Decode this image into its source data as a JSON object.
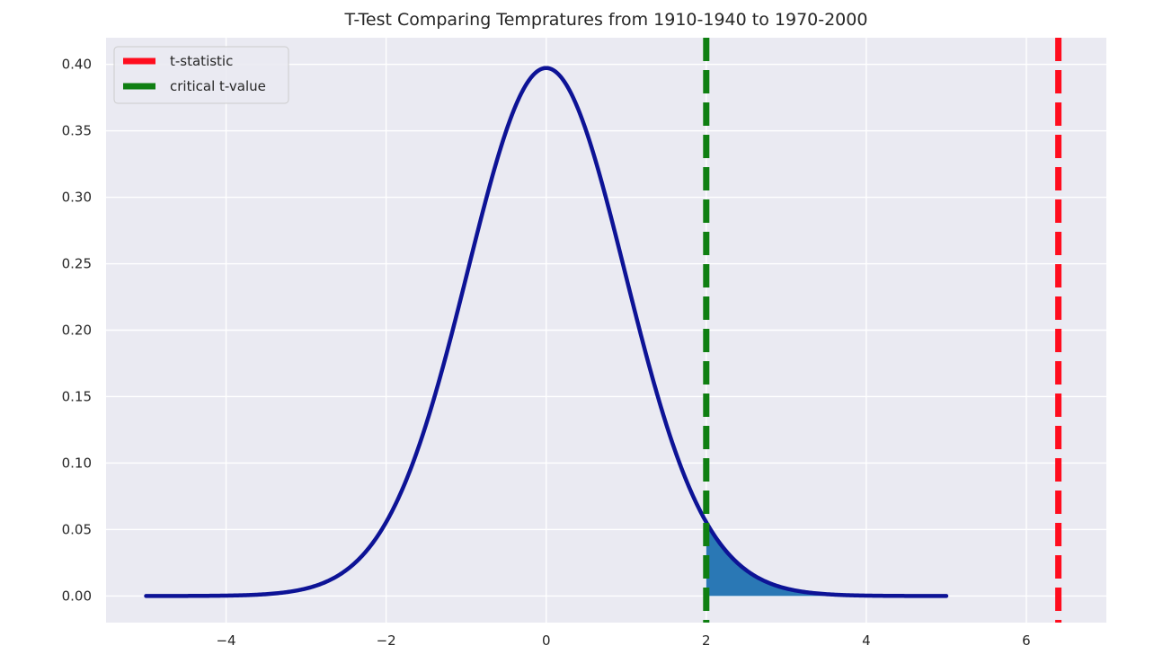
{
  "chart_data": {
    "type": "line",
    "title": "T-Test Comparing Tempratures from 1910-1940 to 1970-2000",
    "xlabel": "",
    "ylabel": "",
    "xlim": [
      -5.5,
      7.0
    ],
    "ylim": [
      -0.02,
      0.42
    ],
    "x_ticks": [
      -4,
      -2,
      0,
      2,
      4,
      6
    ],
    "x_tick_labels": [
      "−4",
      "−2",
      "0",
      "2",
      "4",
      "6"
    ],
    "y_ticks": [
      0.0,
      0.05,
      0.1,
      0.15,
      0.2,
      0.25,
      0.3,
      0.35,
      0.4
    ],
    "y_tick_labels": [
      "0.00",
      "0.05",
      "0.10",
      "0.15",
      "0.20",
      "0.25",
      "0.30",
      "0.35",
      "0.40"
    ],
    "grid": true,
    "legend_position": "top-left",
    "distribution": {
      "description": "Student t probability density",
      "x_range": [
        -5,
        5
      ],
      "df": 58
    },
    "shaded_region": {
      "x_from": 2.0,
      "x_to": 5.0,
      "color": "#2a78b5"
    },
    "series": [
      {
        "name": "t-statistic",
        "kind": "vertical-line",
        "x": 6.4,
        "color": "#ff0d1e",
        "dash": "dashed"
      },
      {
        "name": "critical t-value",
        "kind": "vertical-line",
        "x": 2.0,
        "color": "#0f7f12",
        "dash": "dashed"
      }
    ],
    "curve_color": "#0d1396",
    "background_color": "#eaeaf2",
    "grid_color": "#ffffff"
  }
}
